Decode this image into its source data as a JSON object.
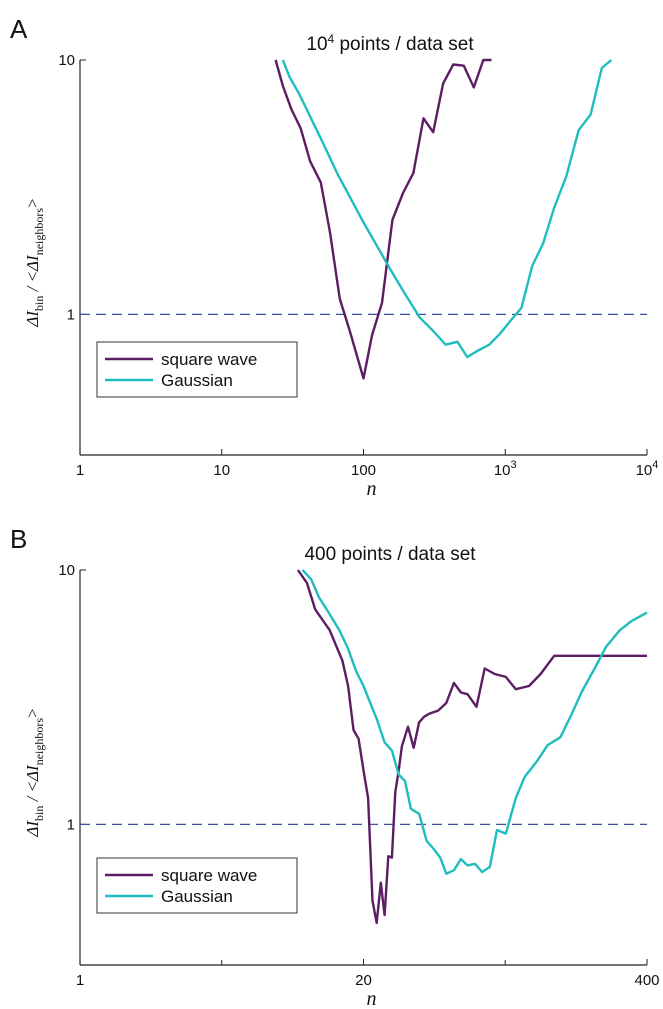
{
  "colors": {
    "square_wave": "#5c1e63",
    "gaussian": "#1fbdbd",
    "reference_line": "#3b4fa0",
    "axis": "#222222"
  },
  "chart_data": [
    {
      "panel": "A",
      "type": "line",
      "title": "10⁴ points / data set",
      "title_parts": {
        "base": "10",
        "sup": "4",
        "rest": " points / data set"
      },
      "xlabel": "n",
      "ylabel": {
        "delta1": "ΔI",
        "sub1": "bin",
        "mid": " / <ΔI",
        "sub2": "neighbors",
        "end": ">"
      },
      "x_scale": "log",
      "y_scale": "log",
      "xlim": [
        1,
        10000
      ],
      "ylim": [
        0.28,
        10
      ],
      "x_ticks": [
        {
          "value": 1,
          "base": "1",
          "sup": ""
        },
        {
          "value": 10,
          "base": "10",
          "sup": ""
        },
        {
          "value": 100,
          "base": "100",
          "sup": ""
        },
        {
          "value": 1000,
          "base": "10",
          "sup": "3"
        },
        {
          "value": 10000,
          "base": "10",
          "sup": "4"
        }
      ],
      "y_ticks": [
        {
          "value": 1,
          "label": "1"
        },
        {
          "value": 10,
          "label": "10"
        }
      ],
      "reference_line": 1,
      "legend_position": "lower-left",
      "series": [
        {
          "name": "square wave",
          "color": "#5c1e63",
          "x": [
            24,
            27,
            31,
            36,
            42,
            50,
            58,
            68,
            80,
            100,
            115,
            135,
            160,
            190,
            225,
            265,
            310,
            365,
            430,
            510,
            600,
            700,
            800
          ],
          "y": [
            10,
            7.9,
            6.4,
            5.4,
            4.0,
            3.3,
            2.1,
            1.15,
            0.86,
            0.56,
            0.83,
            1.11,
            2.35,
            3.0,
            3.6,
            5.9,
            5.2,
            8.1,
            9.6,
            9.5,
            7.8,
            10,
            10
          ]
        },
        {
          "name": "Gaussian",
          "color": "#1fbdbd",
          "x": [
            27,
            30,
            35,
            42,
            52,
            65,
            80,
            100,
            125,
            155,
            195,
            250,
            310,
            380,
            460,
            540,
            640,
            770,
            920,
            1100,
            1300,
            1550,
            1850,
            2200,
            2700,
            3300,
            4000,
            4800,
            5600
          ],
          "y": [
            10,
            8.6,
            7.4,
            6.0,
            4.7,
            3.6,
            2.9,
            2.3,
            1.85,
            1.5,
            1.21,
            0.97,
            0.86,
            0.76,
            0.78,
            0.68,
            0.72,
            0.76,
            0.84,
            0.95,
            1.06,
            1.55,
            1.9,
            2.6,
            3.5,
            5.3,
            6.1,
            9.3,
            10
          ]
        }
      ]
    },
    {
      "panel": "B",
      "type": "line",
      "title": "400 points / data set",
      "title_parts": {
        "base": "400 points / data set",
        "sup": "",
        "rest": ""
      },
      "xlabel": "n",
      "ylabel": {
        "delta1": "ΔI",
        "sub1": "bin",
        "mid": " / <ΔI",
        "sub2": "neighbors",
        "end": ">"
      },
      "x_scale": "log",
      "y_scale": "log",
      "xlim": [
        1,
        400
      ],
      "ylim": [
        0.28,
        10
      ],
      "x_ticks": [
        {
          "value": 1,
          "base": "1",
          "sup": ""
        },
        {
          "value": 20,
          "base": "20",
          "sup": ""
        },
        {
          "value": 400,
          "base": "400",
          "sup": ""
        }
      ],
      "y_ticks": [
        {
          "value": 1,
          "label": "1"
        },
        {
          "value": 10,
          "label": "10"
        }
      ],
      "reference_line": 1,
      "legend_position": "lower-left",
      "series": [
        {
          "name": "square wave",
          "color": "#5c1e63",
          "x": [
            10,
            11,
            12,
            14,
            16,
            17,
            18,
            19,
            20,
            21,
            22,
            23,
            24,
            25,
            26,
            27,
            28,
            29,
            30,
            32,
            34,
            36,
            38,
            40,
            44,
            48,
            52,
            56,
            60,
            66,
            72,
            80,
            90,
            100,
            115,
            130,
            150,
            180,
            210,
            250,
            300,
            350,
            400
          ],
          "y": [
            10,
            8.9,
            7.0,
            5.8,
            4.4,
            3.5,
            2.35,
            2.17,
            1.63,
            1.27,
            0.5,
            0.41,
            0.59,
            0.44,
            0.75,
            0.74,
            1.34,
            1.63,
            2.03,
            2.42,
            2.0,
            2.52,
            2.65,
            2.72,
            2.8,
            3.0,
            3.6,
            3.3,
            3.25,
            2.9,
            4.1,
            3.9,
            3.8,
            3.4,
            3.5,
            3.9,
            4.6,
            4.6,
            4.6,
            4.6,
            4.6,
            4.6,
            4.6
          ]
        },
        {
          "name": "Gaussian",
          "color": "#1fbdbd",
          "x": [
            10.5,
            11.5,
            12.5,
            14,
            15.5,
            17,
            18.5,
            20,
            21.5,
            23,
            25,
            27,
            29,
            31,
            33,
            36,
            39,
            42,
            45,
            48,
            52,
            56,
            60,
            65,
            70,
            76,
            82,
            90,
            100,
            110,
            125,
            140,
            160,
            180,
            200,
            230,
            260,
            300,
            340,
            400
          ],
          "y": [
            10,
            9.2,
            7.8,
            6.7,
            5.8,
            4.9,
            4.0,
            3.5,
            3.0,
            2.6,
            2.1,
            1.95,
            1.57,
            1.48,
            1.15,
            1.1,
            0.86,
            0.8,
            0.74,
            0.64,
            0.66,
            0.73,
            0.69,
            0.7,
            0.65,
            0.68,
            0.95,
            0.92,
            1.27,
            1.54,
            1.77,
            2.05,
            2.2,
            2.7,
            3.3,
            4.1,
            5.0,
            5.8,
            6.3,
            6.8
          ]
        }
      ]
    }
  ]
}
